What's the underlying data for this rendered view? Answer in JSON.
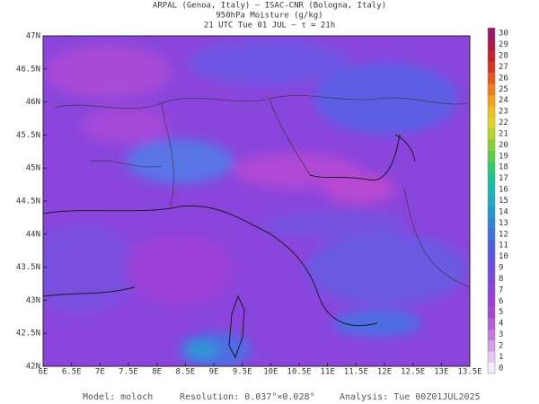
{
  "header": {
    "lines": [
      "ARPAL (Genoa, Italy)  —  ISAC-CNR (Bologna, Italy)",
      "950hPa Moisture (g/kg)",
      "21 UTC Tue 01 JUL  —  τ = 21h"
    ]
  },
  "map": {
    "lat_labels": [
      "47N",
      "46.5N",
      "46N",
      "45.5N",
      "45N",
      "44.5N",
      "44N",
      "43.5N",
      "43N",
      "42.5N",
      "42N"
    ],
    "lon_labels": [
      "6E",
      "6.5E",
      "7E",
      "7.5E",
      "8E",
      "8.5E",
      "9E",
      "9.5E",
      "10E",
      "10.5E",
      "11E",
      "11.5E",
      "12E",
      "12.5E",
      "13E",
      "13.5E"
    ]
  },
  "colorbar": {
    "labels": [
      "0",
      "1",
      "2",
      "3",
      "4",
      "5",
      "6",
      "7",
      "8",
      "9",
      "10",
      "11",
      "12",
      "13",
      "14",
      "15",
      "16",
      "17",
      "18",
      "19",
      "20",
      "21",
      "22",
      "23",
      "24",
      "25",
      "26",
      "27",
      "28",
      "29",
      "30"
    ],
    "colors": [
      "#f4eef8",
      "#e3c9ef",
      "#d29ee6",
      "#c27ade",
      "#b35dd8",
      "#a347d4",
      "#9a3fd8",
      "#8c42dc",
      "#7e46e0",
      "#6f4ce2",
      "#5c55e2",
      "#4a60e0",
      "#3c70dc",
      "#2f84d8",
      "#2698d0",
      "#20aac4",
      "#1cb8b0",
      "#1cc296",
      "#30c870",
      "#5ccc4a",
      "#8ad034",
      "#b6d42a",
      "#dcd426",
      "#f0c020",
      "#f4a01e",
      "#f07c1c",
      "#e8561c",
      "#dc3420",
      "#c8202c",
      "#b0184a",
      "#98186a"
    ]
  },
  "footer": {
    "model": "Model: moloch",
    "resolution": "Resolution: 0.037°×0.028°",
    "analysis": "Analysis: Tue 00Z01JUL2025"
  }
}
